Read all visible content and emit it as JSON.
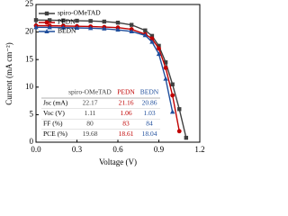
{
  "chart_data": {
    "type": "line",
    "x_label": "Voltage (V)",
    "y_label": "Current (mA cm⁻²)",
    "x": [
      0,
      0.1,
      0.2,
      0.3,
      0.4,
      0.5,
      0.6,
      0.7,
      0.8,
      0.85,
      0.9,
      0.95,
      1.0,
      1.05,
      1.1
    ],
    "series": [
      {
        "name": "spiro-OMeTAD",
        "color": "#404040",
        "marker": "square",
        "values": [
          22.17,
          22.15,
          22.1,
          22.05,
          22.0,
          21.9,
          21.7,
          21.3,
          20.3,
          19.3,
          17.5,
          14.5,
          10.5,
          6,
          0.8
        ]
      },
      {
        "name": "PEDN",
        "color": "#c00000",
        "marker": "circle",
        "values": [
          21.16,
          21.14,
          21.1,
          21.05,
          21.0,
          20.9,
          20.8,
          20.5,
          19.6,
          18.8,
          17,
          13.5,
          8.5,
          2,
          null
        ]
      },
      {
        "name": "BEDN",
        "color": "#1f4e9c",
        "marker": "triangle",
        "values": [
          20.86,
          20.84,
          20.8,
          20.75,
          20.7,
          20.6,
          20.4,
          20.1,
          19.4,
          18.2,
          16,
          11.5,
          5.5,
          null,
          null
        ]
      }
    ],
    "xlim": [
      0,
      1.2
    ],
    "xticks": [
      {
        "value": 0,
        "label": "0.0"
      },
      0.3,
      0.6,
      0.9,
      1.2
    ],
    "ylim": [
      0,
      25
    ],
    "yticks": [
      0,
      5,
      10,
      15,
      20,
      25
    ],
    "grid": false,
    "legend": "upper left",
    "table": {
      "columns": [
        "spiro-OMeTAD",
        "PEDN",
        "BEDN"
      ],
      "rows": [
        [
          "Jsc (mA)",
          22.17,
          21.16,
          20.86
        ],
        [
          "Voc (V)",
          1.11,
          1.06,
          1.03
        ],
        [
          "FF (%)",
          80,
          83,
          84
        ],
        [
          "PCE (%)",
          19.68,
          18.61,
          18.04
        ]
      ]
    }
  }
}
